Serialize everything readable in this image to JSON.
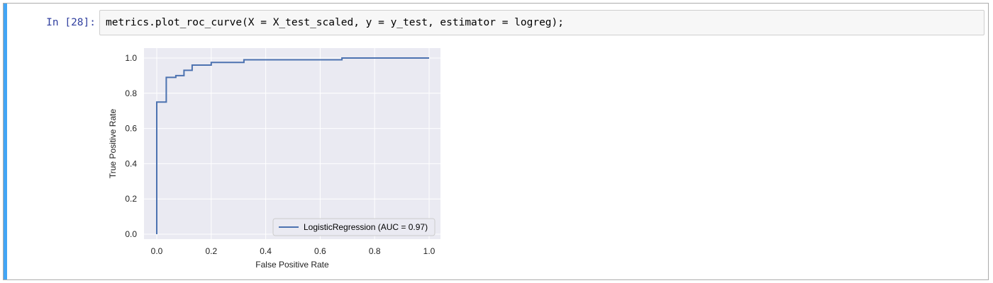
{
  "cell": {
    "prompt": "In [28]:",
    "code": "metrics.plot_roc_curve(X = X_test_scaled, y = y_test, estimator = logreg);"
  },
  "colors": {
    "accent": "#42a5f5",
    "prompt": "#303f9f",
    "plot_background": "#eaeaf2",
    "line": "#4c72b0"
  },
  "chart_data": {
    "type": "line",
    "xlabel": "False Positive Rate",
    "ylabel": "True Positive Rate",
    "xlim": [
      0.0,
      1.0
    ],
    "ylim": [
      0.0,
      1.0
    ],
    "x_ticks": [
      "0.0",
      "0.2",
      "0.4",
      "0.6",
      "0.8",
      "1.0"
    ],
    "y_ticks": [
      "0.0",
      "0.2",
      "0.4",
      "0.6",
      "0.8",
      "1.0"
    ],
    "grid": true,
    "legend_position": "lower-right",
    "series": [
      {
        "name": "LogisticRegression (AUC = 0.97)",
        "x": [
          0.0,
          0.0,
          0.035,
          0.035,
          0.07,
          0.07,
          0.1,
          0.1,
          0.13,
          0.13,
          0.2,
          0.2,
          0.32,
          0.32,
          0.68,
          0.68,
          1.0
        ],
        "y": [
          0.0,
          0.75,
          0.75,
          0.89,
          0.89,
          0.9,
          0.9,
          0.93,
          0.93,
          0.96,
          0.96,
          0.975,
          0.975,
          0.99,
          0.99,
          1.0,
          1.0
        ]
      }
    ]
  }
}
